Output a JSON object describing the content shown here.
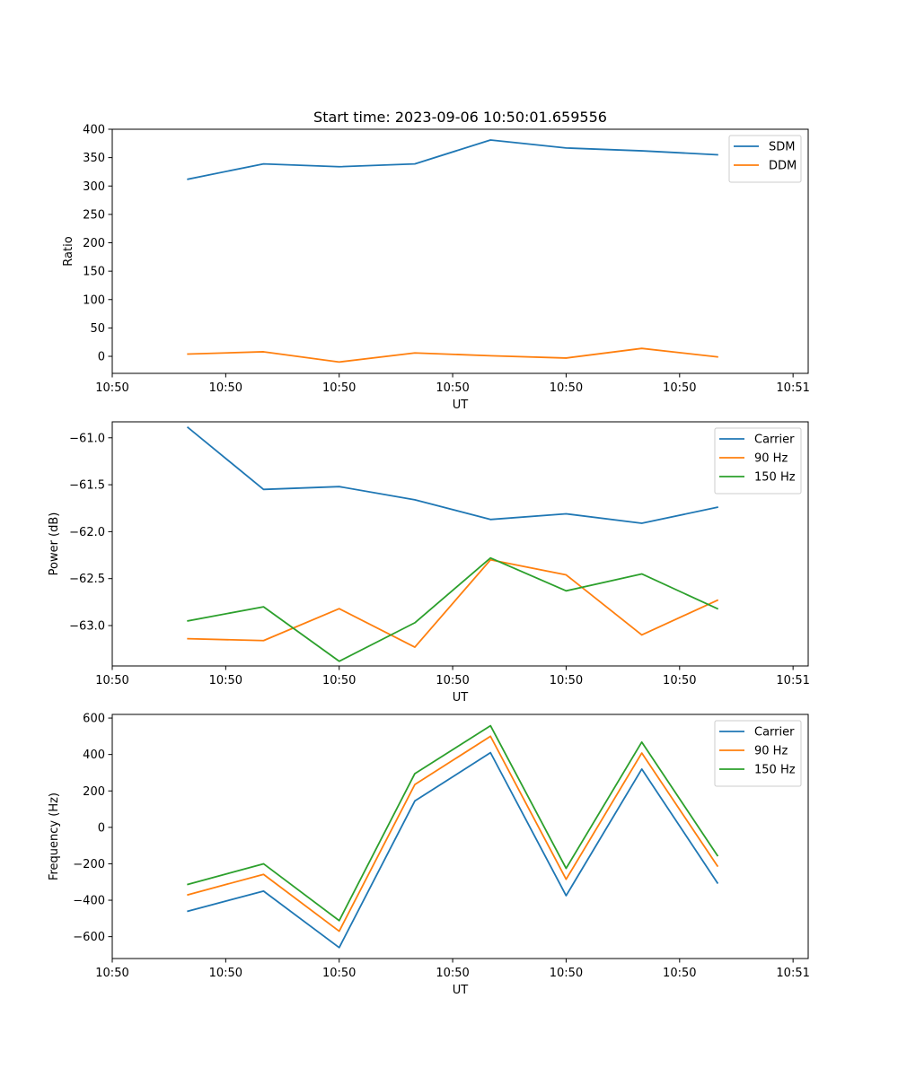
{
  "figure": {
    "title": "Start time: 2023-09-06 10:50:01.659556",
    "colors": {
      "blue": "#1f77b4",
      "orange": "#ff7f0e",
      "green": "#2ca02c"
    }
  },
  "chart_data": [
    {
      "type": "line",
      "title": "Start time: 2023-09-06 10:50:01.659556",
      "xlabel": "UT",
      "ylabel": "Ratio",
      "x": [
        1,
        2,
        3,
        4,
        5,
        6,
        7,
        8
      ],
      "xlim": [
        0,
        9.2
      ],
      "x_ticks": [
        0,
        1.5,
        3,
        4.5,
        6,
        7.5,
        9
      ],
      "x_tick_labels": [
        "10:50",
        "10:50",
        "10:50",
        "10:50",
        "10:50",
        "10:50",
        "10:51"
      ],
      "ylim": [
        -30,
        400
      ],
      "y_ticks": [
        0,
        50,
        100,
        150,
        200,
        250,
        300,
        350,
        400
      ],
      "y_tick_labels": [
        "0",
        "50",
        "100",
        "150",
        "200",
        "250",
        "300",
        "350",
        "400"
      ],
      "legend_position": "top-right",
      "series": [
        {
          "name": "SDM",
          "color": "#1f77b4",
          "values": [
            312,
            339,
            334,
            339,
            381,
            367,
            362,
            355
          ]
        },
        {
          "name": "DDM",
          "color": "#ff7f0e",
          "values": [
            4,
            8,
            -10,
            6,
            1,
            -3,
            14,
            -1
          ]
        }
      ]
    },
    {
      "type": "line",
      "xlabel": "UT",
      "ylabel": "Power (dB)",
      "x": [
        1,
        2,
        3,
        4,
        5,
        6,
        7,
        8
      ],
      "xlim": [
        0,
        9.2
      ],
      "x_ticks": [
        0,
        1.5,
        3,
        4.5,
        6,
        7.5,
        9
      ],
      "x_tick_labels": [
        "10:50",
        "10:50",
        "10:50",
        "10:50",
        "10:50",
        "10:50",
        "10:51"
      ],
      "ylim": [
        -63.43,
        -60.83
      ],
      "y_ticks": [
        -61.0,
        -61.5,
        -62.0,
        -62.5,
        -63.0
      ],
      "y_tick_labels": [
        "−61.0",
        "−61.5",
        "−62.0",
        "−62.5",
        "−63.0"
      ],
      "legend_position": "top-right",
      "series": [
        {
          "name": "Carrier",
          "color": "#1f77b4",
          "values": [
            -60.89,
            -61.55,
            -61.52,
            -61.66,
            -61.87,
            -61.81,
            -61.91,
            -61.74
          ]
        },
        {
          "name": "90 Hz",
          "color": "#ff7f0e",
          "values": [
            -63.14,
            -63.16,
            -62.82,
            -63.23,
            -62.3,
            -62.46,
            -63.1,
            -62.73
          ]
        },
        {
          "name": "150 Hz",
          "color": "#2ca02c",
          "values": [
            -62.95,
            -62.8,
            -63.38,
            -62.97,
            -62.28,
            -62.63,
            -62.45,
            -62.82
          ]
        }
      ]
    },
    {
      "type": "line",
      "xlabel": "UT",
      "ylabel": "Frequency (Hz)",
      "x": [
        1,
        2,
        3,
        4,
        5,
        6,
        7,
        8
      ],
      "xlim": [
        0,
        9.2
      ],
      "x_ticks": [
        0,
        1.5,
        3,
        4.5,
        6,
        7.5,
        9
      ],
      "x_tick_labels": [
        "10:50",
        "10:50",
        "10:50",
        "10:50",
        "10:50",
        "10:50",
        "10:51"
      ],
      "ylim": [
        -720,
        620
      ],
      "y_ticks": [
        -600,
        -400,
        -200,
        0,
        200,
        400,
        600
      ],
      "y_tick_labels": [
        "−600",
        "−400",
        "−200",
        "0",
        "200",
        "400",
        "600"
      ],
      "legend_position": "top-right",
      "series": [
        {
          "name": "Carrier",
          "color": "#1f77b4",
          "values": [
            -460,
            -350,
            -660,
            145,
            410,
            -375,
            320,
            -305
          ]
        },
        {
          "name": "90 Hz",
          "color": "#ff7f0e",
          "values": [
            -370,
            -258,
            -570,
            235,
            500,
            -285,
            408,
            -212
          ]
        },
        {
          "name": "150 Hz",
          "color": "#2ca02c",
          "values": [
            -313,
            -200,
            -512,
            295,
            558,
            -225,
            468,
            -155
          ]
        }
      ]
    }
  ]
}
